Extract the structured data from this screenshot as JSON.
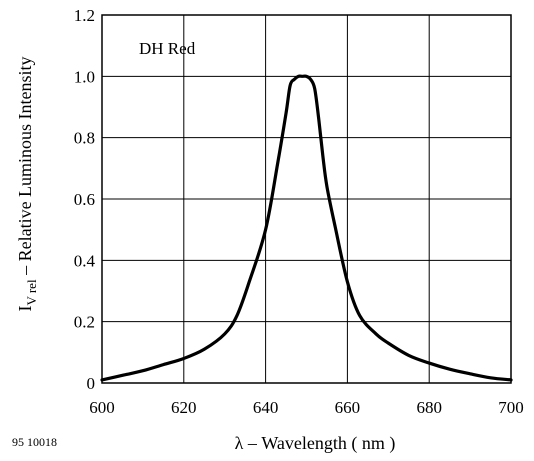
{
  "chart_data": {
    "type": "line",
    "xlabel": "λ – Wavelength ( nm )",
    "ylabel_main": "I",
    "ylabel_sub": "V rel",
    "ylabel_rest": " – Relative Luminous Intensity",
    "annotation": "DH Red",
    "figure_id": "95 10018",
    "xlim": [
      600,
      700
    ],
    "ylim": [
      0,
      1.2
    ],
    "grid": true,
    "x_ticks": [
      600,
      620,
      640,
      660,
      680,
      700
    ],
    "x_tick_labels": [
      "600",
      "620",
      "640",
      "660",
      "680",
      "700"
    ],
    "y_ticks": [
      0,
      0.2,
      0.4,
      0.6,
      0.8,
      1.0,
      1.2
    ],
    "y_tick_labels": [
      "0",
      "0.2",
      "0.4",
      "0.6",
      "0.8",
      "1.0",
      "1.2"
    ],
    "series": [
      {
        "color": "#000000",
        "x": [
          600,
          605,
          610,
          615,
          620,
          625,
          630,
          633,
          636,
          640,
          643,
          645,
          646,
          647,
          648,
          649,
          650,
          651,
          652,
          653,
          654,
          655,
          657,
          660,
          663,
          667,
          670,
          675,
          680,
          685,
          690,
          695,
          700
        ],
        "y": [
          0.01,
          0.025,
          0.04,
          0.06,
          0.08,
          0.11,
          0.16,
          0.22,
          0.33,
          0.5,
          0.72,
          0.88,
          0.97,
          0.99,
          1.0,
          1.0,
          1.0,
          0.99,
          0.96,
          0.86,
          0.74,
          0.64,
          0.51,
          0.33,
          0.22,
          0.16,
          0.13,
          0.09,
          0.065,
          0.045,
          0.03,
          0.017,
          0.01
        ]
      }
    ]
  }
}
